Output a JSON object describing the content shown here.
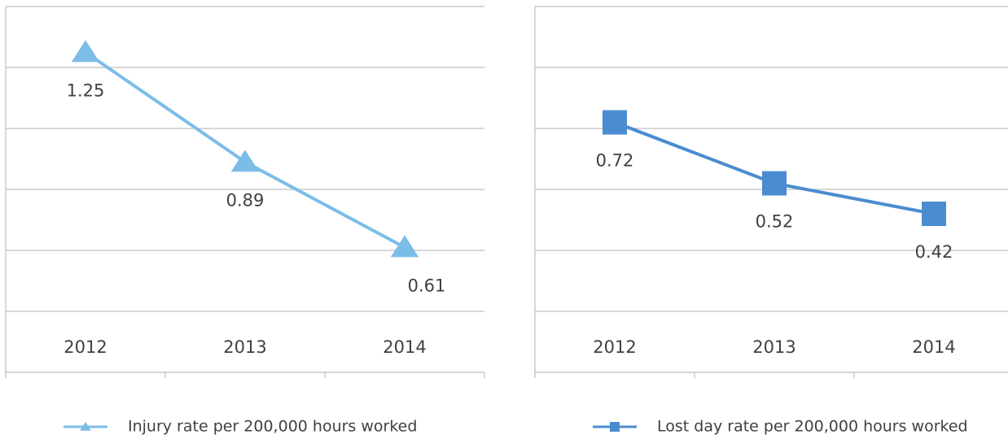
{
  "chart_data": [
    {
      "type": "line",
      "categories": [
        "2012",
        "2013",
        "2014"
      ],
      "series": [
        {
          "name": "Injury rate per 200,000 hours worked",
          "color": "#7cbde8",
          "marker": "triangle",
          "values": [
            1.25,
            0.89,
            0.61
          ]
        }
      ],
      "ylim": [
        0.2,
        1.4
      ],
      "yticks": [
        0.2,
        0.4,
        0.6,
        0.8,
        1.0,
        1.2,
        1.4
      ],
      "grid": true
    },
    {
      "type": "line",
      "categories": [
        "2012",
        "2013",
        "2014"
      ],
      "series": [
        {
          "name": "Lost day rate per 200,000 hours worked",
          "color": "#4a8cd0",
          "marker": "square",
          "values": [
            0.72,
            0.52,
            0.42
          ]
        }
      ],
      "ylim": [
        -0.1,
        1.1
      ],
      "yticks": [
        -0.1,
        0.1,
        0.3,
        0.5,
        0.7,
        0.9,
        1.1
      ],
      "grid": true
    }
  ]
}
